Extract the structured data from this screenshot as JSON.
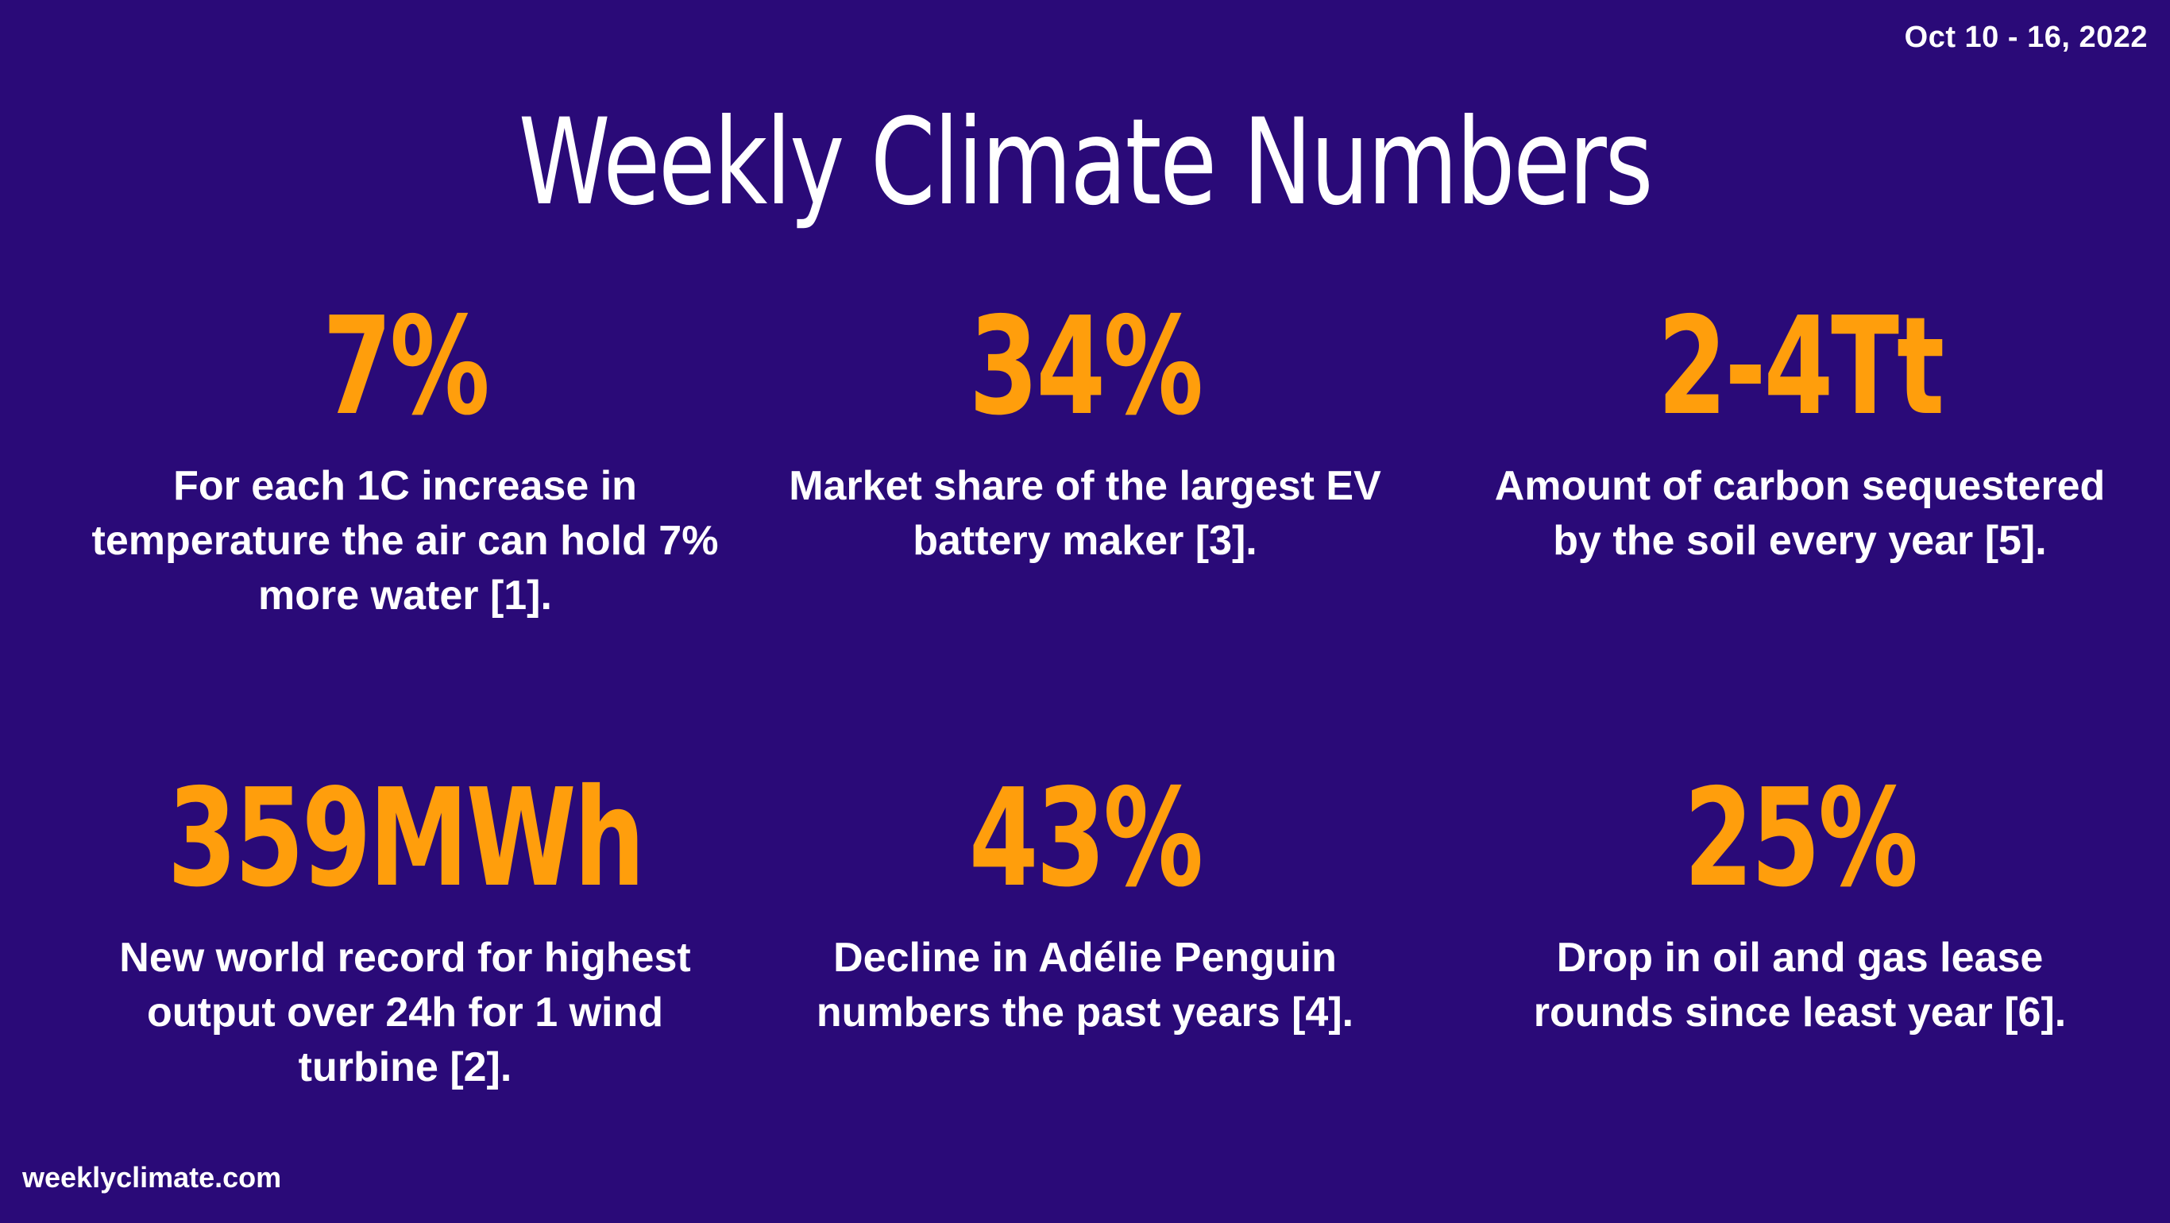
{
  "header": {
    "date_range": "Oct 10 - 16, 2022",
    "title": "Weekly Climate Numbers"
  },
  "stats": [
    {
      "value": "7%",
      "description": "For each 1C increase in temperature the air can hold 7% more water [1]."
    },
    {
      "value": "34%",
      "description": "Market share of the largest EV battery maker [3]."
    },
    {
      "value": "2-4Tt",
      "description": "Amount of carbon sequestered by the soil every year [5]."
    },
    {
      "value": "359MWh",
      "description": "New world record for highest output over 24h for 1 wind turbine [2]."
    },
    {
      "value": "43%",
      "description": "Decline in Adélie Penguin numbers the past years [4]."
    },
    {
      "value": "25%",
      "description": "Drop in oil and gas lease rounds since least year [6]."
    }
  ],
  "footer": {
    "site": "weeklyclimate.com"
  },
  "colors": {
    "background": "#2a0a78",
    "accent": "#ff9e0c",
    "text": "#ffffff"
  }
}
